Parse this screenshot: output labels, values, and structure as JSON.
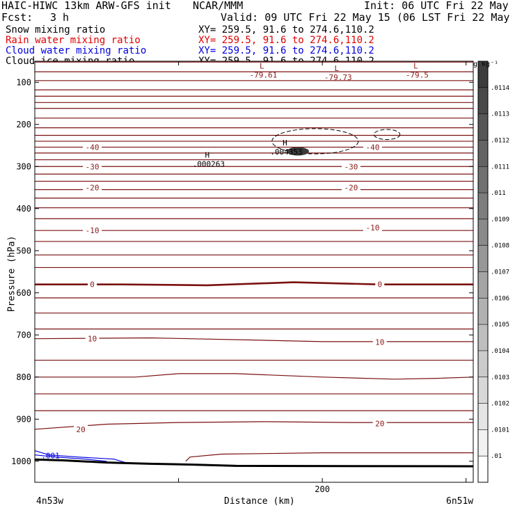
{
  "header": {
    "model": "HAIC-HIWC 13km ARW-GFS init",
    "center": "NCAR/MMM",
    "init": "Init: 06 UTC Fri 22 May 15",
    "fcst_label": "Fcst:",
    "fcst_value": "3 h",
    "valid": "Valid: 09 UTC Fri 22 May 15 (06 LST Fri 22 May 15)"
  },
  "fields": [
    {
      "name": "Snow mixing ratio",
      "xy": "XY= 259.5, 91.6 to 274.6,110.2",
      "color": "#000000"
    },
    {
      "name": "Rain water mixing ratio",
      "xy": "XY= 259.5, 91.6 to 274.6,110.2",
      "color": "#e00000"
    },
    {
      "name": "Cloud water mixing ratio",
      "xy": "XY= 259.5, 91.6 to 274.6,110.2",
      "color": "#0000e0"
    },
    {
      "name": "Cloud ice mixing ratio",
      "xy": "XY= 259.5, 91.6 to 274.6,110.2",
      "color": "#000000"
    }
  ],
  "colorbar": {
    "unit_label": "g kg⁻¹",
    "ticks": [
      ".0114",
      ".0113",
      ".0112",
      ".0111",
      ".011",
      ".0109",
      ".0108",
      ".0107",
      ".0106",
      ".0105",
      ".0104",
      ".0103",
      ".0102",
      ".0101",
      ".01"
    ]
  },
  "colors": {
    "temp_contour": "#7a1010",
    "temp_label": "#8b1a1a",
    "cloud_water": "#0000e0",
    "terrain": "#000000"
  },
  "chart_data": {
    "type": "contour cross-section",
    "xlabel": "Distance (km)",
    "ylabel": "Pressure (hPa)",
    "x_ticks": [
      "200"
    ],
    "x_endpoints": {
      "left": "4n53w",
      "right": "6n51w"
    },
    "ylim": [
      1050,
      50
    ],
    "y_ticks": [
      100,
      200,
      300,
      400,
      500,
      600,
      700,
      800,
      900,
      1000
    ],
    "xlim": [
      0,
      305
    ],
    "temperature_labels": [
      {
        "x": 40,
        "p": 254,
        "text": "-40"
      },
      {
        "x": 235,
        "p": 254,
        "text": "-40"
      },
      {
        "x": 40,
        "p": 300,
        "text": "-30"
      },
      {
        "x": 220,
        "p": 300,
        "text": "-30"
      },
      {
        "x": 40,
        "p": 350,
        "text": "-20"
      },
      {
        "x": 220,
        "p": 350,
        "text": "-20"
      },
      {
        "x": 40,
        "p": 452,
        "text": "-10"
      },
      {
        "x": 235,
        "p": 445,
        "text": "-10"
      },
      {
        "x": 40,
        "p": 580,
        "text": "0"
      },
      {
        "x": 240,
        "p": 580,
        "text": "0"
      },
      {
        "x": 40,
        "p": 709,
        "text": "10"
      },
      {
        "x": 240,
        "p": 717,
        "text": "10"
      },
      {
        "x": 32,
        "p": 924,
        "text": "20"
      },
      {
        "x": 240,
        "p": 910,
        "text": "20"
      }
    ],
    "extrema": [
      {
        "x": 158,
        "p": 72,
        "kind": "L",
        "value": "-79.61"
      },
      {
        "x": 210,
        "p": 78,
        "kind": "L",
        "value": "-79.73"
      },
      {
        "x": 265,
        "p": 72,
        "kind": "L",
        "value": "-79.5"
      },
      {
        "x": 120,
        "p": 284,
        "kind": "H",
        "value": ".000263"
      },
      {
        "x": 174,
        "p": 255,
        "kind": "H",
        "value": ".004353"
      }
    ],
    "cloud_water_label": {
      "x": 8,
      "p": 986,
      "text": ".001"
    }
  }
}
